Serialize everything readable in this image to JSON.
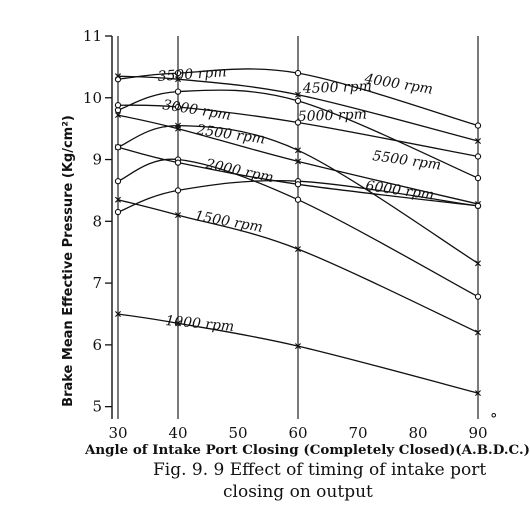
{
  "chart_data": {
    "type": "line",
    "title": "",
    "xlabel": "Angle of Intake Port Closing (Completely Closed)(A.B.D.C.)",
    "x_unit_symbol": "°",
    "ylabel": "Brake Mean Effective Pressure (Kg/cm²)",
    "xlim": [
      29,
      91
    ],
    "ylim": [
      4.8,
      11
    ],
    "x_ticks": [
      30,
      40,
      50,
      60,
      70,
      80,
      90
    ],
    "y_ticks": [
      5,
      6,
      7,
      8,
      9,
      10,
      11
    ],
    "grid": "vertical lines at x = 30, 40, 60, 90",
    "legend": "none (series labelled directly on curves)",
    "caption": {
      "line1": "Fig. 9. 9   Effect of timing of intake port",
      "line2": "closing on output"
    },
    "series": [
      {
        "name": "1000 rpm",
        "x": [
          30,
          40,
          60,
          90
        ],
        "y": [
          6.5,
          6.35,
          5.98,
          5.22
        ]
      },
      {
        "name": "1500 rpm",
        "x": [
          30,
          40,
          60,
          90
        ],
        "y": [
          8.35,
          8.1,
          7.55,
          6.2
        ]
      },
      {
        "name": "2000 rpm",
        "x": [
          30,
          40,
          60,
          90
        ],
        "y": [
          8.15,
          8.5,
          8.65,
          8.25
        ]
      },
      {
        "name": "2500 rpm",
        "x": [
          30,
          40,
          60,
          90
        ],
        "y": [
          8.65,
          9.0,
          8.35,
          6.78
        ]
      },
      {
        "name": "3000 rpm",
        "x": [
          30,
          40,
          60,
          90
        ],
        "y": [
          9.2,
          9.55,
          9.15,
          7.32
        ]
      },
      {
        "name": "3500 rpm",
        "x": [
          30,
          40,
          60,
          90
        ],
        "y": [
          9.8,
          10.1,
          9.95,
          8.7
        ]
      },
      {
        "name": "4000 rpm",
        "x": [
          30,
          40,
          60,
          90
        ],
        "y": [
          10.3,
          10.4,
          10.4,
          9.55
        ]
      },
      {
        "name": "4500 rpm",
        "x": [
          30,
          40,
          60,
          90
        ],
        "y": [
          10.35,
          10.3,
          10.05,
          9.3
        ]
      },
      {
        "name": "5000 rpm",
        "x": [
          30,
          40,
          60,
          90
        ],
        "y": [
          9.88,
          9.85,
          9.6,
          9.05
        ]
      },
      {
        "name": "5500 rpm",
        "x": [
          30,
          40,
          60,
          90
        ],
        "y": [
          9.72,
          9.5,
          8.97,
          8.28
        ]
      },
      {
        "name": "6000 rpm",
        "x": [
          30,
          40,
          60,
          90
        ],
        "y": [
          9.2,
          8.95,
          8.6,
          8.25
        ]
      }
    ]
  }
}
